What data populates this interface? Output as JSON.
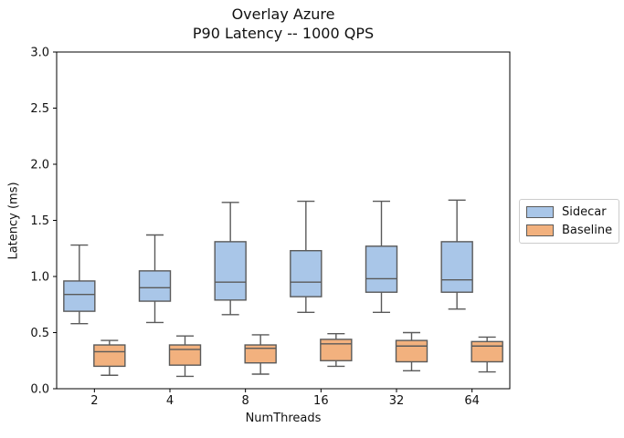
{
  "chart_data": {
    "type": "boxplot",
    "title": "Overlay Azure",
    "subtitle": "P90 Latency -- 1000 QPS",
    "xlabel": "NumThreads",
    "ylabel": "Latency (ms)",
    "categories": [
      "2",
      "4",
      "8",
      "16",
      "32",
      "64"
    ],
    "ylim": [
      0.0,
      3.0
    ],
    "yticks": [
      "0.0",
      "0.5",
      "1.0",
      "1.5",
      "2.0",
      "2.5",
      "3.0"
    ],
    "grid": false,
    "legend_position": "center-right-outside",
    "units": "ms",
    "series": [
      {
        "name": "Sidecar",
        "color": "#a9c6e8",
        "edge_color": "#5a5a5a",
        "boxes": [
          {
            "whisker_low": 0.58,
            "q1": 0.69,
            "median": 0.84,
            "q3": 0.96,
            "whisker_high": 1.28
          },
          {
            "whisker_low": 0.59,
            "q1": 0.78,
            "median": 0.9,
            "q3": 1.05,
            "whisker_high": 1.37
          },
          {
            "whisker_low": 0.66,
            "q1": 0.79,
            "median": 0.95,
            "q3": 1.31,
            "whisker_high": 1.66
          },
          {
            "whisker_low": 0.68,
            "q1": 0.82,
            "median": 0.95,
            "q3": 1.23,
            "whisker_high": 1.67
          },
          {
            "whisker_low": 0.68,
            "q1": 0.86,
            "median": 0.98,
            "q3": 1.27,
            "whisker_high": 1.67
          },
          {
            "whisker_low": 0.71,
            "q1": 0.86,
            "median": 0.97,
            "q3": 1.31,
            "whisker_high": 1.68
          }
        ]
      },
      {
        "name": "Baseline",
        "color": "#f2b17e",
        "edge_color": "#5a5a5a",
        "boxes": [
          {
            "whisker_low": 0.12,
            "q1": 0.2,
            "median": 0.33,
            "q3": 0.39,
            "whisker_high": 0.43
          },
          {
            "whisker_low": 0.11,
            "q1": 0.21,
            "median": 0.35,
            "q3": 0.39,
            "whisker_high": 0.47
          },
          {
            "whisker_low": 0.13,
            "q1": 0.23,
            "median": 0.36,
            "q3": 0.39,
            "whisker_high": 0.48
          },
          {
            "whisker_low": 0.2,
            "q1": 0.25,
            "median": 0.4,
            "q3": 0.44,
            "whisker_high": 0.49
          },
          {
            "whisker_low": 0.16,
            "q1": 0.24,
            "median": 0.38,
            "q3": 0.43,
            "whisker_high": 0.5
          },
          {
            "whisker_low": 0.15,
            "q1": 0.24,
            "median": 0.38,
            "q3": 0.42,
            "whisker_high": 0.46
          }
        ]
      }
    ]
  }
}
